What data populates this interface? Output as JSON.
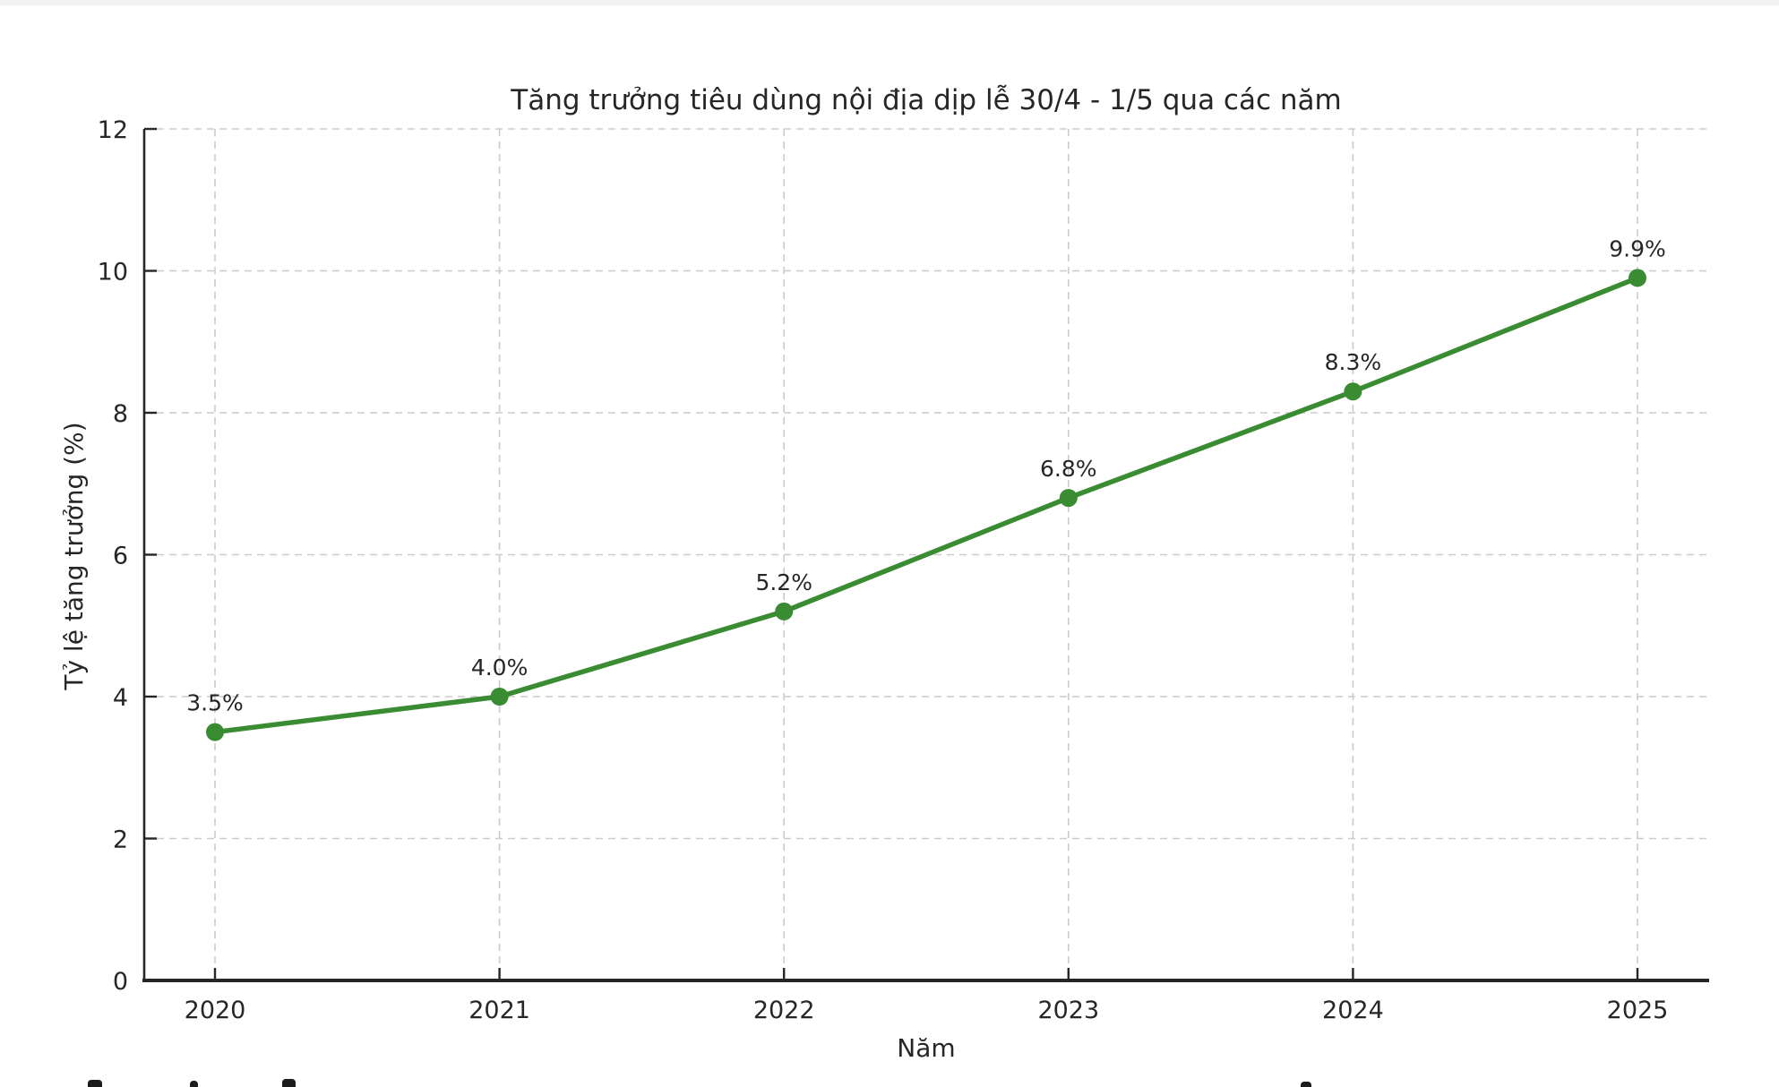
{
  "page": {
    "background": "#ffffff",
    "top_strip_color": "#f2f2f2"
  },
  "chart_data": {
    "type": "line",
    "title": "Tăng trưởng tiêu dùng nội địa dịp lễ 30/4 - 1/5 qua các năm",
    "xlabel": "Năm",
    "ylabel": "Tỷ lệ tăng trưởng (%)",
    "categories": [
      "2020",
      "2021",
      "2022",
      "2023",
      "2024",
      "2025"
    ],
    "series": [
      {
        "name": "Tỷ lệ tăng trưởng",
        "values": [
          3.5,
          4.0,
          5.2,
          6.8,
          8.3,
          9.9
        ]
      }
    ],
    "point_labels": [
      "3.5%",
      "4.0%",
      "5.2%",
      "6.8%",
      "8.3%",
      "9.9%"
    ],
    "ylim": [
      0,
      12
    ],
    "yticks": [
      0,
      2,
      4,
      6,
      8,
      10,
      12
    ],
    "grid": true,
    "grid_style": "dashed",
    "legend_position": "none",
    "line_color": "#3a8c32",
    "marker": "circle",
    "grid_color": "#cccccc",
    "axis_color": "#262626",
    "text_color": "#262626"
  }
}
